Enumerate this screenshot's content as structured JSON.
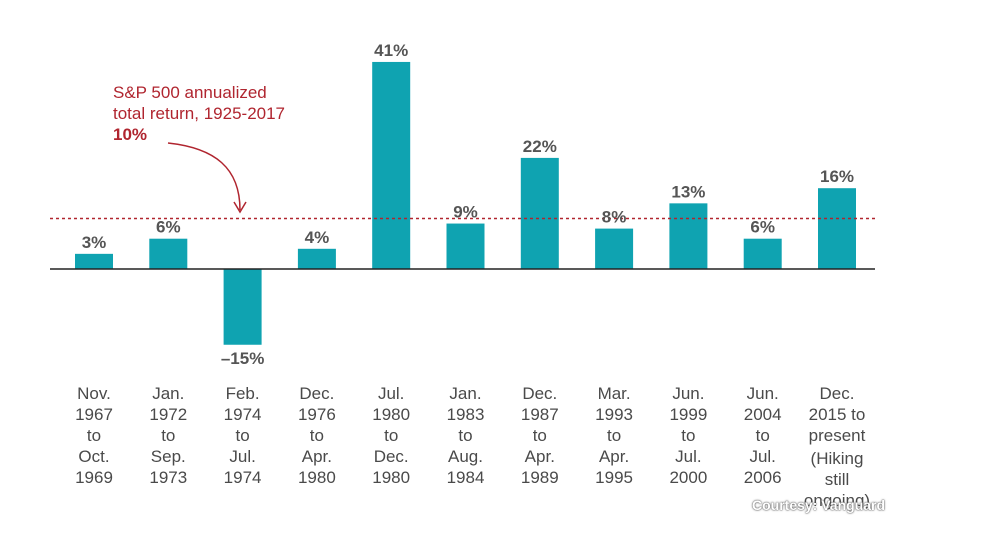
{
  "chart_data": {
    "type": "bar",
    "categories": [
      "Nov.\n1967\nto\nOct.\n1969",
      "Jan.\n1972\nto\nSep.\n1973",
      "Feb.\n1974\nto\nJul.\n1974",
      "Dec.\n1976\nto\nApr.\n1980",
      "Jul.\n1980\nto\nDec.\n1980",
      "Jan.\n1983\nto\nAug.\n1984",
      "Dec.\n1987\nto\nApr.\n1989",
      "Mar.\n1993\nto\nApr.\n1995",
      "Jun.\n1999\nto\nJul.\n2000",
      "Jun.\n2004\nto\nJul.\n2006",
      "Dec.\n2015 to\npresent"
    ],
    "category_note": "(Hiking\nstill\nongoing)",
    "values": [
      3,
      6,
      -15,
      4,
      41,
      9,
      22,
      8,
      13,
      6,
      16
    ],
    "value_labels": [
      "3%",
      "6%",
      "–15%",
      "4%",
      "41%",
      "9%",
      "22%",
      "8%",
      "13%",
      "6%",
      "16%"
    ],
    "reference_line": {
      "value": 10,
      "label_line1": "S&P 500 annualized",
      "label_line2": "total return, 1925-2017",
      "label_value": "10%"
    },
    "ylim": [
      -15,
      41
    ],
    "bar_color": "#0fa3b1",
    "reference_color": "#b0252f",
    "title": "",
    "xlabel": "",
    "ylabel": ""
  },
  "credit": "Courtesy: Vanguard"
}
